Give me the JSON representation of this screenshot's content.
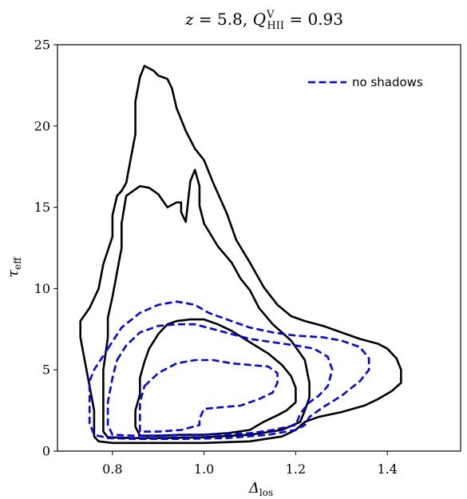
{
  "chart_data": {
    "type": "line",
    "title": "z = 5.8, Q_HII^V = 0.93",
    "title_parts": {
      "z": "z",
      "eq1": " = 5.8, ",
      "Q": "Q",
      "sup": "V",
      "sub": "HII",
      "eq2": " = 0.93"
    },
    "xlabel": "Δ_los",
    "xlabel_parts": {
      "main": "Δ",
      "sub": "los"
    },
    "ylabel": "τ_eff",
    "ylabel_parts": {
      "main": "τ",
      "sub": "eff"
    },
    "xlim": [
      0.68,
      1.56
    ],
    "ylim": [
      0,
      25
    ],
    "x_ticks": [
      0.8,
      1.0,
      1.2,
      1.4
    ],
    "x_tick_labels": [
      "0.8",
      "1.0",
      "1.2",
      "1.4"
    ],
    "y_ticks": [
      0,
      5,
      10,
      15,
      20,
      25
    ],
    "y_tick_labels": [
      "0",
      "5",
      "10",
      "15",
      "20",
      "25"
    ],
    "legend_position": "top-right",
    "series": [
      {
        "style": "solid",
        "color": "#000000",
        "contours": [
          [
            [
              0.87,
              23.7
            ],
            [
              0.89,
              23.4
            ],
            [
              0.9,
              23.1
            ],
            [
              0.92,
              22.9
            ],
            [
              0.93,
              22.3
            ],
            [
              0.94,
              21.1
            ],
            [
              0.96,
              19.7
            ],
            [
              0.98,
              18.6
            ],
            [
              1.0,
              17.9
            ],
            [
              1.02,
              16.5
            ],
            [
              1.05,
              14.6
            ],
            [
              1.07,
              13.0
            ],
            [
              1.1,
              11.6
            ],
            [
              1.13,
              10.1
            ],
            [
              1.16,
              9.0
            ],
            [
              1.19,
              8.3
            ],
            [
              1.22,
              8.0
            ],
            [
              1.26,
              7.7
            ],
            [
              1.3,
              7.3
            ],
            [
              1.34,
              6.9
            ],
            [
              1.38,
              6.6
            ],
            [
              1.4,
              6.3
            ],
            [
              1.42,
              5.7
            ],
            [
              1.43,
              5.0
            ],
            [
              1.43,
              4.2
            ],
            [
              1.41,
              3.7
            ],
            [
              1.38,
              3.2
            ],
            [
              1.35,
              2.8
            ],
            [
              1.3,
              2.4
            ],
            [
              1.25,
              2.1
            ],
            [
              1.22,
              1.8
            ],
            [
              1.2,
              1.3
            ],
            [
              1.17,
              0.9
            ],
            [
              1.1,
              0.6
            ],
            [
              1.0,
              0.5
            ],
            [
              0.9,
              0.5
            ],
            [
              0.8,
              0.5
            ],
            [
              0.77,
              0.6
            ],
            [
              0.76,
              0.9
            ],
            [
              0.76,
              1.4
            ],
            [
              0.76,
              2.5
            ],
            [
              0.75,
              4.0
            ],
            [
              0.74,
              5.5
            ],
            [
              0.73,
              7.0
            ],
            [
              0.73,
              8.0
            ],
            [
              0.75,
              8.8
            ],
            [
              0.77,
              10.0
            ],
            [
              0.78,
              11.5
            ],
            [
              0.8,
              13.2
            ],
            [
              0.8,
              14.5
            ],
            [
              0.81,
              15.7
            ],
            [
              0.82,
              16.0
            ],
            [
              0.83,
              16.5
            ],
            [
              0.84,
              18.0
            ],
            [
              0.85,
              19.5
            ],
            [
              0.85,
              21.5
            ],
            [
              0.86,
              23.0
            ],
            [
              0.87,
              23.7
            ]
          ],
          [
            [
              0.83,
              15.7
            ],
            [
              0.86,
              16.3
            ],
            [
              0.88,
              16.2
            ],
            [
              0.9,
              15.8
            ],
            [
              0.92,
              15.0
            ],
            [
              0.94,
              15.3
            ],
            [
              0.95,
              15.3
            ],
            [
              0.95,
              14.7
            ],
            [
              0.96,
              14.1
            ],
            [
              0.97,
              16.6
            ],
            [
              0.98,
              17.3
            ],
            [
              0.99,
              16.3
            ],
            [
              0.99,
              15.1
            ],
            [
              1.0,
              14.0
            ],
            [
              1.03,
              12.6
            ],
            [
              1.06,
              11.6
            ],
            [
              1.08,
              10.6
            ],
            [
              1.1,
              9.9
            ],
            [
              1.12,
              8.8
            ],
            [
              1.15,
              7.8
            ],
            [
              1.19,
              6.8
            ],
            [
              1.22,
              5.6
            ],
            [
              1.23,
              4.2
            ],
            [
              1.23,
              3.3
            ],
            [
              1.22,
              2.5
            ],
            [
              1.21,
              1.8
            ],
            [
              1.17,
              1.3
            ],
            [
              1.1,
              1.0
            ],
            [
              1.0,
              0.85
            ],
            [
              0.9,
              0.8
            ],
            [
              0.85,
              0.8
            ],
            [
              0.79,
              0.85
            ],
            [
              0.78,
              1.2
            ],
            [
              0.78,
              2.5
            ],
            [
              0.78,
              5.0
            ],
            [
              0.79,
              7.0
            ],
            [
              0.79,
              8.2
            ],
            [
              0.8,
              9.5
            ],
            [
              0.81,
              11.0
            ],
            [
              0.82,
              12.5
            ],
            [
              0.82,
              14.0
            ],
            [
              0.83,
              15.7
            ]
          ],
          [
            [
              0.88,
              6.3
            ],
            [
              0.9,
              7.2
            ],
            [
              0.92,
              7.8
            ],
            [
              0.94,
              8.0
            ],
            [
              0.97,
              8.1
            ],
            [
              1.0,
              8.1
            ],
            [
              1.03,
              7.8
            ],
            [
              1.06,
              7.4
            ],
            [
              1.1,
              6.7
            ],
            [
              1.14,
              6.0
            ],
            [
              1.17,
              5.3
            ],
            [
              1.19,
              4.6
            ],
            [
              1.2,
              3.9
            ],
            [
              1.2,
              3.0
            ],
            [
              1.18,
              2.5
            ],
            [
              1.16,
              2.2
            ],
            [
              1.13,
              1.8
            ],
            [
              1.1,
              1.3
            ],
            [
              1.05,
              1.1
            ],
            [
              1.0,
              1.0
            ],
            [
              0.95,
              1.0
            ],
            [
              0.9,
              0.95
            ],
            [
              0.86,
              0.95
            ],
            [
              0.85,
              1.5
            ],
            [
              0.85,
              2.5
            ],
            [
              0.86,
              3.5
            ],
            [
              0.86,
              4.5
            ],
            [
              0.87,
              5.5
            ],
            [
              0.88,
              6.3
            ]
          ]
        ]
      },
      {
        "name": "no shadows",
        "style": "dashed",
        "color": "#0000ff",
        "contours": [
          [
            [
              0.79,
              6.3
            ],
            [
              0.82,
              7.6
            ],
            [
              0.86,
              8.5
            ],
            [
              0.9,
              9.0
            ],
            [
              0.94,
              9.2
            ],
            [
              0.98,
              9.0
            ],
            [
              1.01,
              8.5
            ],
            [
              1.05,
              8.1
            ],
            [
              1.1,
              7.6
            ],
            [
              1.15,
              7.3
            ],
            [
              1.2,
              7.1
            ],
            [
              1.26,
              7.0
            ],
            [
              1.3,
              6.8
            ],
            [
              1.34,
              6.4
            ],
            [
              1.36,
              5.7
            ],
            [
              1.36,
              5.0
            ],
            [
              1.34,
              4.3
            ],
            [
              1.3,
              3.4
            ],
            [
              1.26,
              2.7
            ],
            [
              1.23,
              2.1
            ],
            [
              1.22,
              1.6
            ],
            [
              1.2,
              1.3
            ],
            [
              1.14,
              1.0
            ],
            [
              1.05,
              0.8
            ],
            [
              0.95,
              0.75
            ],
            [
              0.85,
              0.75
            ],
            [
              0.79,
              0.8
            ],
            [
              0.76,
              1.0
            ],
            [
              0.75,
              1.7
            ],
            [
              0.75,
              3.0
            ],
            [
              0.75,
              4.3
            ],
            [
              0.76,
              5.0
            ],
            [
              0.79,
              6.3
            ]
          ],
          [
            [
              0.81,
              5.6
            ],
            [
              0.83,
              6.5
            ],
            [
              0.86,
              7.3
            ],
            [
              0.9,
              7.7
            ],
            [
              0.94,
              7.8
            ],
            [
              0.98,
              7.8
            ],
            [
              1.02,
              7.5
            ],
            [
              1.06,
              7.2
            ],
            [
              1.1,
              6.9
            ],
            [
              1.15,
              6.7
            ],
            [
              1.2,
              6.5
            ],
            [
              1.24,
              6.3
            ],
            [
              1.27,
              5.8
            ],
            [
              1.28,
              5.0
            ],
            [
              1.27,
              4.0
            ],
            [
              1.25,
              3.4
            ],
            [
              1.23,
              3.0
            ],
            [
              1.21,
              2.3
            ],
            [
              1.2,
              1.6
            ],
            [
              1.15,
              1.3
            ],
            [
              1.1,
              1.1
            ],
            [
              1.0,
              1.0
            ],
            [
              0.9,
              0.95
            ],
            [
              0.85,
              0.95
            ],
            [
              0.8,
              1.0
            ],
            [
              0.79,
              1.6
            ],
            [
              0.79,
              3.0
            ],
            [
              0.8,
              4.5
            ],
            [
              0.81,
              5.6
            ]
          ],
          [
            [
              0.87,
              4.0
            ],
            [
              0.9,
              4.8
            ],
            [
              0.94,
              5.4
            ],
            [
              0.98,
              5.6
            ],
            [
              1.02,
              5.6
            ],
            [
              1.06,
              5.4
            ],
            [
              1.1,
              5.3
            ],
            [
              1.14,
              5.2
            ],
            [
              1.16,
              4.8
            ],
            [
              1.16,
              4.2
            ],
            [
              1.15,
              3.6
            ],
            [
              1.12,
              3.2
            ],
            [
              1.08,
              2.8
            ],
            [
              1.04,
              2.7
            ],
            [
              1.0,
              2.6
            ],
            [
              0.99,
              2.0
            ],
            [
              0.99,
              1.6
            ],
            [
              0.95,
              1.3
            ],
            [
              0.9,
              1.2
            ],
            [
              0.86,
              1.2
            ],
            [
              0.86,
              2.0
            ],
            [
              0.86,
              3.0
            ],
            [
              0.87,
              4.0
            ]
          ]
        ]
      }
    ]
  }
}
